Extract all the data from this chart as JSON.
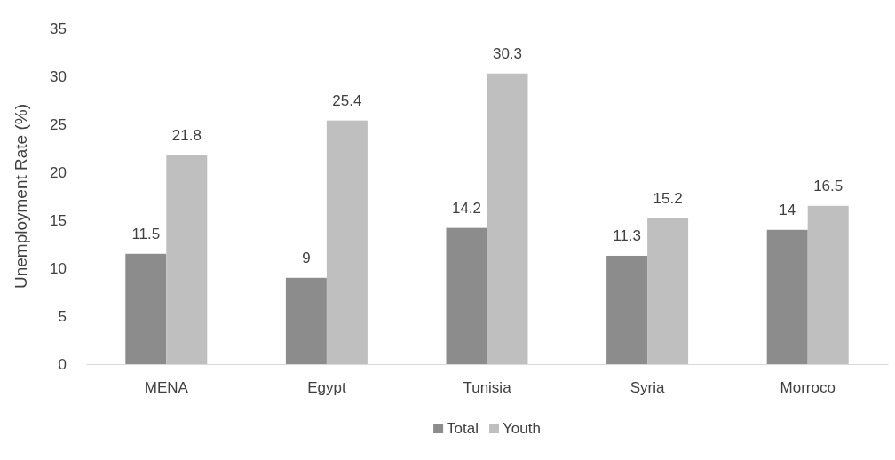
{
  "chart_data": {
    "type": "bar",
    "ylabel": "Unemployment Rate (%)",
    "categories": [
      "MENA",
      "Egypt",
      "Tunisia",
      "Syria",
      "Morroco"
    ],
    "series": [
      {
        "name": "Total",
        "color": "#8c8c8c",
        "values": [
          11.5,
          9,
          14.2,
          11.3,
          14
        ]
      },
      {
        "name": "Youth",
        "color": "#bfbfbf",
        "values": [
          21.8,
          25.4,
          30.3,
          15.2,
          16.5
        ]
      }
    ],
    "ylim": [
      0,
      35
    ],
    "yticks": [
      0,
      5,
      10,
      15,
      20,
      25,
      30,
      35
    ],
    "grid": false,
    "legend": "bottom",
    "data_labels": true
  }
}
